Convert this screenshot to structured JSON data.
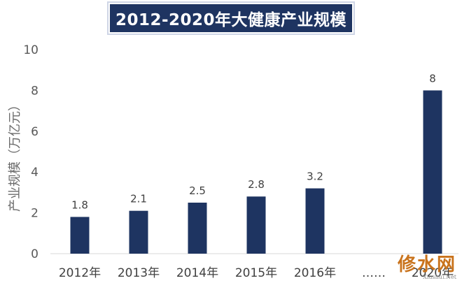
{
  "chart_data": {
    "type": "bar",
    "title": "2012-2020年大健康产业规模",
    "ylabel": "产业规模（万亿元）",
    "xlabel": "",
    "categories": [
      "2012年",
      "2013年",
      "2014年",
      "2015年",
      "2016年",
      "……",
      "2020年"
    ],
    "values": [
      1.8,
      2.1,
      2.5,
      2.8,
      3.2,
      null,
      8
    ],
    "data_labels": [
      "1.8",
      "2.1",
      "2.5",
      "2.8",
      "3.2",
      "",
      "8"
    ],
    "ylim": [
      0,
      10
    ],
    "yticks": [
      0,
      2,
      4,
      6,
      8,
      10
    ],
    "grid": false,
    "bar_color": "#1e3461",
    "title_bg_color": "#1e3461",
    "title_text_color": "#ffffff"
  },
  "watermark": {
    "main": "修水网",
    "sub": "Xiushui.Net"
  }
}
